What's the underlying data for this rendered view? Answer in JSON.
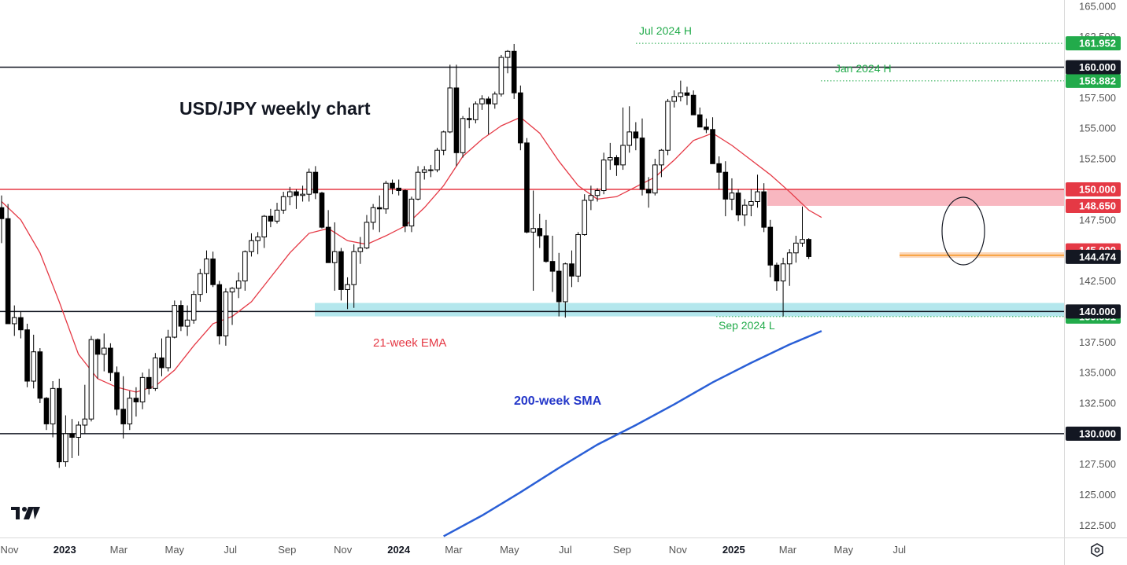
{
  "chart_data": {
    "type": "candlestick",
    "title": "USD/JPY weekly chart",
    "ylim": [
      121.5,
      165.5
    ],
    "y_ticks": [
      "165.000",
      "162.500",
      "157.500",
      "155.000",
      "152.500",
      "147.500",
      "142.500",
      "137.500",
      "135.000",
      "132.500",
      "127.500",
      "125.000",
      "122.500"
    ],
    "x_ticks": [
      {
        "label": "Nov",
        "date": "2022-11-01",
        "year": false
      },
      {
        "label": "2023",
        "date": "2023-01-01",
        "year": true
      },
      {
        "label": "Mar",
        "date": "2023-03-01",
        "year": false
      },
      {
        "label": "May",
        "date": "2023-05-01",
        "year": false
      },
      {
        "label": "Jul",
        "date": "2023-07-01",
        "year": false
      },
      {
        "label": "Sep",
        "date": "2023-09-01",
        "year": false
      },
      {
        "label": "Nov",
        "date": "2023-11-01",
        "year": false
      },
      {
        "label": "2024",
        "date": "2024-01-01",
        "year": true
      },
      {
        "label": "Mar",
        "date": "2024-03-01",
        "year": false
      },
      {
        "label": "May",
        "date": "2024-05-01",
        "year": false
      },
      {
        "label": "Jul",
        "date": "2024-07-01",
        "year": false
      },
      {
        "label": "Sep",
        "date": "2024-09-01",
        "year": false
      },
      {
        "label": "Nov",
        "date": "2024-11-01",
        "year": false
      },
      {
        "label": "2025",
        "date": "2025-01-01",
        "year": true
      },
      {
        "label": "Mar",
        "date": "2025-03-01",
        "year": false
      },
      {
        "label": "May",
        "date": "2025-05-01",
        "year": false
      },
      {
        "label": "Jul",
        "date": "2025-07-01",
        "year": false
      }
    ],
    "first_week": "2022-10-24",
    "candles": [
      [
        148.5,
        149.5,
        145.6,
        147.6
      ],
      [
        147.6,
        148.8,
        139.2,
        139.0
      ],
      [
        139.0,
        140.5,
        138.0,
        139.5
      ],
      [
        139.5,
        140.0,
        137.8,
        138.5
      ],
      [
        138.5,
        139.0,
        133.8,
        134.3
      ],
      [
        134.3,
        138.1,
        133.7,
        136.7
      ],
      [
        136.7,
        137.0,
        132.5,
        132.9
      ],
      [
        132.9,
        133.0,
        130.3,
        130.8
      ],
      [
        130.8,
        134.3,
        129.7,
        133.7
      ],
      [
        133.7,
        134.5,
        127.2,
        127.7
      ],
      [
        127.7,
        131.5,
        127.3,
        130.0
      ],
      [
        130.0,
        131.2,
        128.0,
        129.7
      ],
      [
        129.7,
        131.0,
        128.2,
        130.7
      ],
      [
        130.7,
        134.0,
        130.0,
        131.2
      ],
      [
        131.2,
        138.0,
        131.0,
        137.7
      ],
      [
        137.7,
        137.8,
        134.5,
        136.5
      ],
      [
        136.5,
        138.2,
        135.1,
        137.0
      ],
      [
        137.0,
        137.4,
        134.3,
        135.0
      ],
      [
        135.0,
        135.5,
        131.5,
        132.0
      ],
      [
        132.0,
        134.7,
        129.6,
        130.8
      ],
      [
        130.8,
        133.5,
        130.3,
        132.9
      ],
      [
        132.9,
        133.8,
        131.4,
        132.6
      ],
      [
        132.6,
        135.0,
        132.0,
        134.6
      ],
      [
        134.6,
        135.3,
        133.2,
        133.7
      ],
      [
        133.7,
        136.6,
        133.5,
        136.2
      ],
      [
        136.2,
        137.8,
        134.7,
        135.4
      ],
      [
        135.4,
        138.5,
        135.1,
        137.9
      ],
      [
        137.9,
        140.9,
        137.8,
        140.5
      ],
      [
        140.5,
        140.9,
        138.4,
        138.8
      ],
      [
        138.8,
        140.5,
        138.0,
        139.3
      ],
      [
        139.3,
        141.7,
        139.0,
        141.4
      ],
      [
        141.4,
        143.5,
        140.8,
        143.1
      ],
      [
        143.1,
        145.0,
        141.5,
        144.3
      ],
      [
        144.3,
        144.9,
        142.0,
        142.2
      ],
      [
        142.2,
        142.5,
        137.3,
        138.0
      ],
      [
        138.0,
        141.9,
        137.2,
        141.6
      ],
      [
        141.6,
        142.0,
        138.9,
        141.9
      ],
      [
        141.9,
        143.2,
        141.1,
        142.5
      ],
      [
        142.5,
        145.0,
        141.7,
        144.9
      ],
      [
        144.9,
        146.4,
        144.5,
        145.8
      ],
      [
        145.8,
        146.5,
        144.7,
        146.1
      ],
      [
        146.1,
        147.9,
        145.2,
        147.8
      ],
      [
        147.8,
        148.4,
        146.9,
        147.4
      ],
      [
        147.4,
        148.9,
        147.2,
        148.3
      ],
      [
        148.3,
        149.8,
        148.0,
        149.4
      ],
      [
        149.4,
        150.2,
        148.7,
        149.8
      ],
      [
        149.8,
        150.0,
        148.4,
        149.5
      ],
      [
        149.5,
        150.3,
        149.0,
        149.6
      ],
      [
        149.6,
        151.7,
        149.0,
        151.4
      ],
      [
        151.4,
        151.9,
        149.2,
        149.7
      ],
      [
        149.7,
        149.8,
        146.8,
        146.9
      ],
      [
        146.9,
        148.3,
        144.2,
        144.0
      ],
      [
        144.0,
        147.3,
        141.7,
        144.9
      ],
      [
        144.9,
        145.2,
        140.9,
        141.8
      ],
      [
        141.8,
        142.8,
        140.2,
        142.2
      ],
      [
        142.2,
        145.5,
        140.3,
        144.9
      ],
      [
        144.9,
        146.1,
        143.9,
        145.2
      ],
      [
        145.2,
        147.9,
        145.1,
        147.3
      ],
      [
        147.3,
        148.8,
        146.7,
        148.5
      ],
      [
        148.5,
        149.5,
        146.5,
        148.4
      ],
      [
        148.4,
        150.7,
        148.0,
        150.5
      ],
      [
        150.5,
        150.8,
        149.6,
        150.1
      ],
      [
        150.1,
        150.8,
        149.5,
        149.9
      ],
      [
        149.9,
        150.0,
        146.5,
        147.0
      ],
      [
        147.0,
        149.4,
        146.5,
        149.2
      ],
      [
        149.2,
        151.9,
        149.1,
        151.4
      ],
      [
        151.4,
        151.9,
        150.8,
        151.6
      ],
      [
        151.6,
        152.0,
        151.0,
        151.6
      ],
      [
        151.6,
        153.4,
        151.4,
        153.2
      ],
      [
        153.2,
        154.8,
        152.8,
        154.7
      ],
      [
        154.7,
        160.2,
        154.6,
        158.3
      ],
      [
        158.3,
        160.2,
        151.9,
        153.0
      ],
      [
        153.0,
        156.0,
        152.6,
        155.8
      ],
      [
        155.8,
        156.7,
        155.0,
        155.7
      ],
      [
        155.7,
        157.2,
        155.4,
        157.0
      ],
      [
        157.0,
        157.7,
        156.5,
        157.4
      ],
      [
        157.4,
        157.6,
        154.5,
        157.0
      ],
      [
        157.0,
        158.0,
        156.6,
        157.8
      ],
      [
        157.8,
        161.0,
        157.6,
        160.8
      ],
      [
        160.8,
        161.4,
        159.5,
        161.3
      ],
      [
        161.3,
        161.9,
        157.4,
        157.9
      ],
      [
        157.9,
        158.5,
        153.2,
        153.8
      ],
      [
        153.8,
        154.2,
        146.4,
        146.5
      ],
      [
        146.5,
        149.9,
        141.7,
        146.8
      ],
      [
        146.8,
        148.0,
        145.2,
        146.2
      ],
      [
        146.2,
        147.5,
        144.0,
        144.1
      ],
      [
        144.1,
        146.2,
        141.6,
        143.3
      ],
      [
        143.3,
        144.8,
        139.6,
        140.8
      ],
      [
        140.8,
        144.0,
        139.5,
        143.9
      ],
      [
        143.9,
        145.0,
        142.0,
        142.9
      ],
      [
        142.9,
        146.5,
        142.4,
        146.3
      ],
      [
        146.3,
        149.6,
        146.2,
        149.1
      ],
      [
        149.1,
        150.3,
        148.3,
        149.5
      ],
      [
        149.5,
        150.1,
        149.0,
        149.9
      ],
      [
        149.9,
        153.0,
        149.6,
        152.4
      ],
      [
        152.4,
        153.8,
        151.6,
        152.6
      ],
      [
        152.6,
        152.8,
        151.1,
        152.0
      ],
      [
        152.0,
        156.7,
        151.6,
        153.6
      ],
      [
        153.6,
        156.8,
        153.0,
        154.7
      ],
      [
        154.7,
        155.5,
        153.2,
        154.2
      ],
      [
        154.2,
        155.8,
        149.5,
        150.0
      ],
      [
        150.0,
        151.0,
        148.5,
        149.7
      ],
      [
        149.7,
        152.5,
        149.5,
        152.0
      ],
      [
        152.0,
        153.3,
        151.0,
        153.2
      ],
      [
        153.2,
        157.4,
        152.8,
        157.2
      ],
      [
        157.2,
        158.1,
        156.7,
        157.6
      ],
      [
        157.6,
        158.9,
        157.2,
        157.9
      ],
      [
        157.9,
        158.4,
        156.9,
        157.7
      ],
      [
        157.7,
        158.1,
        156.1,
        156.1
      ],
      [
        156.1,
        156.7,
        155.3,
        155.1
      ],
      [
        155.1,
        155.8,
        154.6,
        154.9
      ],
      [
        154.9,
        155.9,
        152.3,
        152.1
      ],
      [
        152.1,
        152.7,
        150.0,
        151.4
      ],
      [
        151.4,
        152.3,
        147.8,
        149.2
      ],
      [
        149.2,
        150.9,
        148.3,
        149.7
      ],
      [
        149.7,
        150.0,
        147.4,
        147.9
      ],
      [
        147.9,
        149.2,
        147.0,
        148.7
      ],
      [
        148.7,
        150.0,
        147.8,
        149.0
      ],
      [
        149.0,
        151.2,
        148.5,
        149.8
      ],
      [
        149.8,
        150.5,
        146.5,
        146.9
      ],
      [
        146.9,
        147.5,
        142.8,
        143.8
      ],
      [
        143.8,
        144.0,
        141.7,
        142.5
      ],
      [
        142.5,
        144.4,
        139.6,
        143.9
      ],
      [
        143.9,
        145.1,
        142.1,
        144.8
      ],
      [
        144.8,
        146.2,
        144.0,
        145.6
      ],
      [
        145.6,
        148.6,
        145.3,
        145.9
      ],
      [
        145.9,
        146.0,
        144.3,
        144.5
      ]
    ],
    "ema21": [
      [
        0,
        149.0
      ],
      [
        3,
        147.5
      ],
      [
        6,
        144.8
      ],
      [
        9,
        140.8
      ],
      [
        12,
        136.5
      ],
      [
        15,
        134.5
      ],
      [
        18,
        133.8
      ],
      [
        21,
        133.4
      ],
      [
        24,
        133.9
      ],
      [
        27,
        135.2
      ],
      [
        30,
        137.2
      ],
      [
        33,
        139.0
      ],
      [
        36,
        139.6
      ],
      [
        39,
        140.8
      ],
      [
        42,
        142.8
      ],
      [
        45,
        144.8
      ],
      [
        48,
        146.4
      ],
      [
        51,
        146.8
      ],
      [
        54,
        145.8
      ],
      [
        57,
        145.5
      ],
      [
        60,
        146.2
      ],
      [
        63,
        147.0
      ],
      [
        66,
        148.5
      ],
      [
        69,
        150.3
      ],
      [
        72,
        152.7
      ],
      [
        75,
        154.1
      ],
      [
        78,
        155.2
      ],
      [
        81,
        155.9
      ],
      [
        84,
        154.6
      ],
      [
        87,
        152.3
      ],
      [
        90,
        150.3
      ],
      [
        93,
        149.2
      ],
      [
        96,
        149.4
      ],
      [
        99,
        150.2
      ],
      [
        102,
        151.0
      ],
      [
        105,
        152.4
      ],
      [
        108,
        154.0
      ],
      [
        111,
        154.6
      ],
      [
        114,
        153.6
      ],
      [
        117,
        152.4
      ],
      [
        120,
        151.2
      ],
      [
        123,
        149.8
      ],
      [
        126,
        148.3
      ],
      [
        128,
        147.7
      ]
    ],
    "sma200": [
      [
        69,
        121.6
      ],
      [
        75,
        123.3
      ],
      [
        81,
        125.2
      ],
      [
        87,
        127.2
      ],
      [
        93,
        129.1
      ],
      [
        99,
        130.7
      ],
      [
        105,
        132.4
      ],
      [
        111,
        134.2
      ],
      [
        117,
        135.8
      ],
      [
        123,
        137.3
      ],
      [
        128,
        138.4
      ]
    ],
    "levels": [
      {
        "value": 160.0,
        "label": "160.000",
        "color": "#131722"
      },
      {
        "value": 150.0,
        "label": "150.000",
        "color": "#e53945"
      },
      {
        "value": 140.0,
        "label": "140.000",
        "color": "#131722"
      },
      {
        "value": 130.0,
        "label": "130.000",
        "color": "#131722"
      }
    ],
    "dotted_levels": [
      {
        "value": 161.952,
        "label": "161.952",
        "annotation": "Jul 2024 H",
        "color": "#22ab4b"
      },
      {
        "value": 158.882,
        "label": "158.882",
        "annotation": "Jan 2024 H",
        "color": "#22ab4b"
      },
      {
        "value": 139.581,
        "label": "139.581",
        "annotation": "Sep 2024 L",
        "color": "#22ab4b"
      }
    ],
    "zones": [
      {
        "from": 148.65,
        "to": 150.0,
        "color": "#f7aab5",
        "label": "148.650"
      },
      {
        "from": 139.6,
        "to": 140.7,
        "color": "#a7e3ea"
      },
      {
        "from": 144.4,
        "to": 144.85,
        "color": "#fbd3b2"
      }
    ],
    "price_tags": [
      {
        "value": 145.0,
        "label": "145.000",
        "color": "#e53945"
      },
      {
        "value": 144.474,
        "label": "144.474",
        "color": "#131722"
      }
    ],
    "annotations": [
      {
        "text": "21-week EMA",
        "color": "#e53945"
      },
      {
        "text": "200-week SMA",
        "color": "#2336c9"
      }
    ],
    "colors": {
      "up": "#ffffff",
      "down": "#000000",
      "ema": "#e53945",
      "sma": "#2a5fd6",
      "grid": "#f0f3fa"
    },
    "logo": "tradingview-logo-icon",
    "settings_icon": "gear-icon"
  }
}
